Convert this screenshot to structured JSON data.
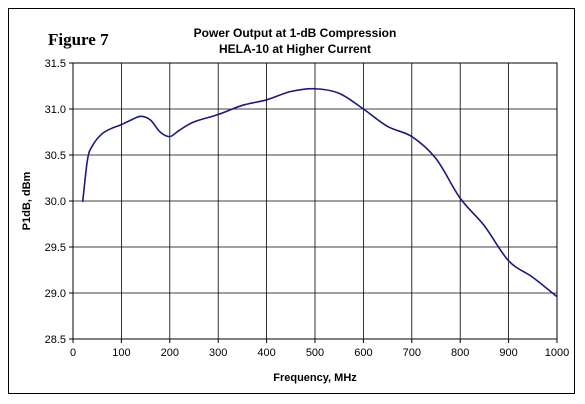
{
  "figure_label": "Figure 7",
  "chart_data": {
    "type": "line",
    "title": "Power Output at 1-dB Compression",
    "subtitle": "HELA-10 at Higher Current",
    "xlabel": "Frequency, MHz",
    "ylabel": "P1dB, dBm",
    "xlim": [
      0,
      1000
    ],
    "ylim": [
      28.5,
      31.5
    ],
    "x_ticks": [
      0,
      100,
      200,
      300,
      400,
      500,
      600,
      700,
      800,
      900,
      1000
    ],
    "y_ticks": [
      28.5,
      29.0,
      29.5,
      30.0,
      30.5,
      31.0,
      31.5
    ],
    "y_tick_labels": [
      "28.5",
      "29.0",
      "29.5",
      "30.0",
      "30.5",
      "31.0",
      "31.5"
    ],
    "grid": true,
    "line_color": "#1a1a80",
    "series": [
      {
        "x": [
          20,
          30,
          40,
          60,
          80,
          100,
          120,
          140,
          160,
          180,
          200,
          220,
          250,
          300,
          350,
          400,
          450,
          500,
          550,
          600,
          650,
          700,
          750,
          800,
          850,
          900,
          950,
          1000
        ],
        "values": [
          29.99,
          30.45,
          30.6,
          30.73,
          30.79,
          30.83,
          30.88,
          30.92,
          30.88,
          30.75,
          30.7,
          30.77,
          30.86,
          30.94,
          31.04,
          31.1,
          31.19,
          31.22,
          31.17,
          31.0,
          30.81,
          30.7,
          30.46,
          30.03,
          29.73,
          29.35,
          29.17,
          28.96
        ]
      }
    ]
  }
}
